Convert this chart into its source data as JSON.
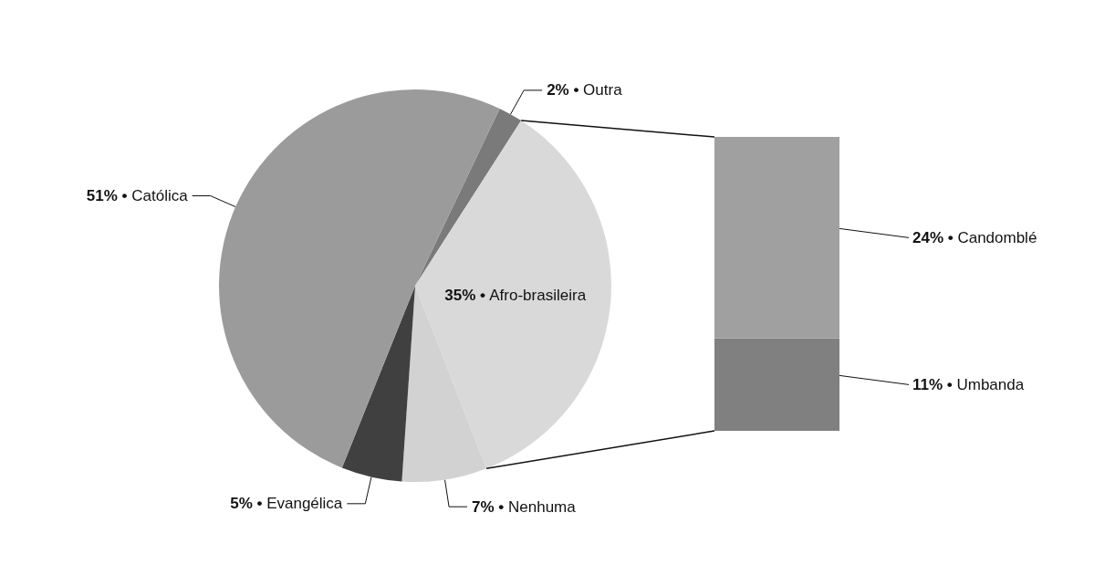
{
  "chart_data": [
    {
      "type": "pie",
      "categories": [
        "Outra",
        "Afro-brasileira",
        "Nenhuma",
        "Evangélica",
        "Católica"
      ],
      "values": [
        2,
        35,
        7,
        5,
        51
      ],
      "value_labels": [
        "2% •",
        "35% •",
        "7% •",
        "5% •",
        "51% •"
      ],
      "colors": [
        "#7a7a7a",
        "#d9d9d9",
        "#d2d2d2",
        "#404040",
        "#9b9b9b"
      ]
    },
    {
      "type": "bar",
      "stacked": true,
      "categories": [
        null
      ],
      "series": [
        {
          "name": "Umbanda",
          "color": "#808080",
          "values": [
            11
          ],
          "value_labels": [
            "11% •"
          ]
        },
        {
          "name": "Candomblé",
          "color": "#a0a0a0",
          "values": [
            24
          ],
          "value_labels": [
            "24% •"
          ]
        }
      ]
    }
  ]
}
